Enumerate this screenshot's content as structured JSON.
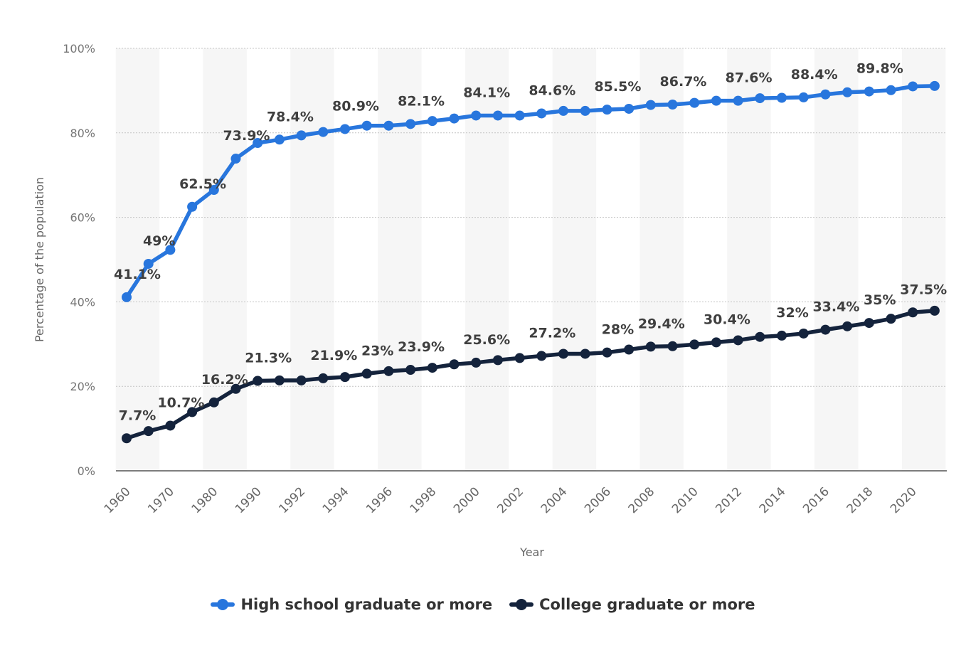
{
  "chart_data": {
    "type": "line",
    "xlabel": "Year",
    "ylabel": "Percentage of the population",
    "ylim": [
      0,
      100
    ],
    "yticks": [
      "0%",
      "20%",
      "40%",
      "60%",
      "80%",
      "100%"
    ],
    "grid": "horizontal dotted",
    "legend_position": "bottom-center",
    "x": [
      1960,
      1965,
      1970,
      1975,
      1980,
      1985,
      1990,
      1991,
      1992,
      1993,
      1994,
      1995,
      1996,
      1997,
      1998,
      1999,
      2000,
      2001,
      2002,
      2003,
      2004,
      2005,
      2006,
      2007,
      2008,
      2009,
      2010,
      2011,
      2012,
      2013,
      2014,
      2015,
      2016,
      2017,
      2018,
      2019,
      2020,
      2021
    ],
    "xtick_labels": [
      "1960",
      "1970",
      "1980",
      "1990",
      "1992",
      "1994",
      "1996",
      "1998",
      "2000",
      "2002",
      "2004",
      "2006",
      "2008",
      "2010",
      "2012",
      "2014",
      "2016",
      "2018",
      "2020"
    ],
    "series": [
      {
        "name": "High school graduate or more",
        "color": "#2876dd",
        "values": [
          41.1,
          49,
          52.3,
          62.5,
          66.5,
          73.9,
          77.6,
          78.4,
          79.4,
          80.2,
          80.9,
          81.7,
          81.7,
          82.1,
          82.8,
          83.4,
          84.1,
          84.1,
          84.1,
          84.6,
          85.2,
          85.2,
          85.5,
          85.7,
          86.6,
          86.7,
          87.1,
          87.6,
          87.6,
          88.2,
          88.3,
          88.4,
          89.1,
          89.6,
          89.8,
          90.1,
          91.0,
          91.1
        ],
        "labels": {
          "0": "41.1%",
          "1": "49%",
          "3": "62.5%",
          "5": "73.9%",
          "7": "78.4%",
          "10": "80.9%",
          "13": "82.1%",
          "16": "84.1%",
          "19": "84.6%",
          "22": "85.5%",
          "25": "86.7%",
          "28": "87.6%",
          "31": "88.4%",
          "34": "89.8%"
        }
      },
      {
        "name": "College graduate or more",
        "color": "#14233c",
        "values": [
          7.7,
          9.4,
          10.7,
          13.9,
          16.2,
          19.4,
          21.3,
          21.4,
          21.4,
          21.9,
          22.2,
          23,
          23.6,
          23.9,
          24.4,
          25.2,
          25.6,
          26.2,
          26.7,
          27.2,
          27.7,
          27.7,
          28,
          28.7,
          29.4,
          29.5,
          29.9,
          30.4,
          30.9,
          31.7,
          32,
          32.5,
          33.4,
          34.2,
          35,
          36,
          37.5,
          37.9
        ],
        "labels": {
          "0": "7.7%",
          "2": "10.7%",
          "4": "16.2%",
          "6": "21.3%",
          "9": "21.9%",
          "11": "23%",
          "13": "23.9%",
          "16": "25.6%",
          "19": "27.2%",
          "22": "28%",
          "24": "29.4%",
          "27": "30.4%",
          "30": "32%",
          "32": "33.4%",
          "34": "35%",
          "36": "37.5%"
        }
      }
    ]
  }
}
